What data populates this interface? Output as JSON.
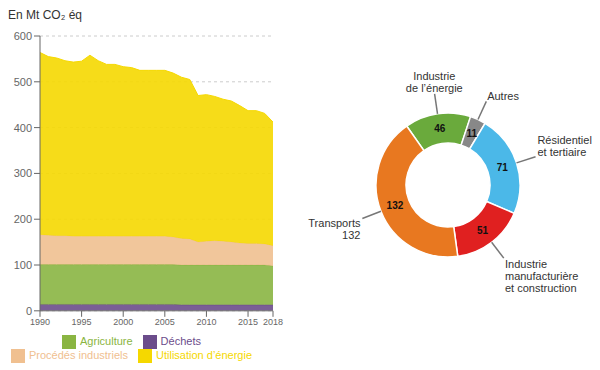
{
  "chart_data": [
    {
      "type": "area",
      "stacked": true,
      "ylabel": "En Mt CO₂ éq",
      "x": [
        1990,
        1991,
        1992,
        1993,
        1994,
        1995,
        1996,
        1997,
        1998,
        1999,
        2000,
        2001,
        2002,
        2003,
        2004,
        2005,
        2006,
        2007,
        2008,
        2009,
        2010,
        2011,
        2012,
        2013,
        2014,
        2015,
        2016,
        2017,
        2018
      ],
      "xlim": [
        1990,
        2018
      ],
      "xticks": [
        1990,
        1995,
        2000,
        2005,
        2010,
        2015,
        2018
      ],
      "ylim": [
        0,
        600
      ],
      "yticks": [
        0,
        100,
        200,
        300,
        400,
        500,
        600
      ],
      "grid": true,
      "legend": "bottom",
      "series": [
        {
          "name": "Déchets",
          "color": "#6b4c8b",
          "values": [
            14,
            14,
            14,
            14,
            14,
            14,
            14,
            14,
            14,
            14,
            14,
            14,
            14,
            14,
            14,
            14,
            14,
            13,
            13,
            13,
            13,
            13,
            13,
            13,
            13,
            13,
            13,
            13,
            13
          ]
        },
        {
          "name": "Agriculture",
          "color": "#8ab542",
          "values": [
            87,
            87,
            87,
            87,
            87,
            87,
            87,
            87,
            87,
            87,
            87,
            87,
            87,
            87,
            87,
            87,
            87,
            87,
            87,
            87,
            87,
            87,
            87,
            87,
            87,
            87,
            87,
            87,
            85
          ]
        },
        {
          "name": "Procédés industriels",
          "color": "#f0c090",
          "values": [
            65,
            64,
            63,
            63,
            62,
            62,
            62,
            62,
            62,
            62,
            62,
            62,
            62,
            62,
            62,
            62,
            60,
            58,
            57,
            50,
            52,
            53,
            52,
            50,
            48,
            47,
            47,
            46,
            44
          ]
        },
        {
          "name": "Utilisation d’énergie",
          "color": "#f5d800",
          "values": [
            398,
            390,
            388,
            382,
            380,
            382,
            395,
            383,
            375,
            375,
            370,
            368,
            362,
            362,
            362,
            362,
            358,
            352,
            348,
            320,
            320,
            315,
            310,
            308,
            300,
            290,
            290,
            285,
            270
          ]
        }
      ]
    },
    {
      "type": "pie",
      "categories": [
        "Industrie\nde l’énergie",
        "Autres",
        "Résidentiel\net tertiaire",
        "Industrie\nmanufacturière\net construction",
        "Transports\n132"
      ],
      "values": [
        46,
        11,
        71,
        51,
        132
      ],
      "colors": [
        "#6aaa3c",
        "#888888",
        "#4bb8e8",
        "#e02020",
        "#e87820"
      ],
      "data_labels": true
    }
  ]
}
